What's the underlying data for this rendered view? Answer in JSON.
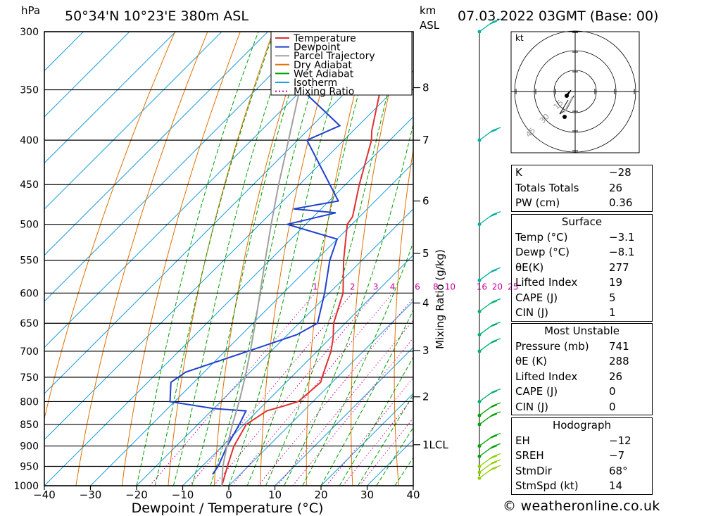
{
  "header": {
    "hpa_label": "hPa",
    "location": "50°34'N  10°23'E  380m  ASL",
    "km_label": "km",
    "asl_label": "ASL",
    "datetime": "07.03.2022  03GMT  (Base: 00)"
  },
  "chart_data": {
    "type": "skew-t",
    "xlabel": "Dewpoint / Temperature (°C)",
    "ylabel_right": "Mixing Ratio (g/kg)",
    "x_ticks": [
      -40,
      -30,
      -20,
      -10,
      0,
      10,
      20,
      30,
      40
    ],
    "x_tick_labels": [
      "−40",
      "−30",
      "−20",
      "−10",
      "0",
      "10",
      "20",
      "30",
      "40"
    ],
    "pressure_levels": [
      300,
      350,
      400,
      450,
      500,
      550,
      600,
      650,
      700,
      750,
      800,
      850,
      900,
      950,
      1000
    ],
    "xlim_at_1000hPa": [
      -40,
      40
    ],
    "ylim_hpa": [
      300,
      1000
    ],
    "km_ticks": [
      {
        "label": "8",
        "p": 348
      },
      {
        "label": "7",
        "p": 400
      },
      {
        "label": "6",
        "p": 470
      },
      {
        "label": "5",
        "p": 540
      },
      {
        "label": "4",
        "p": 616
      },
      {
        "label": "3",
        "p": 699
      },
      {
        "label": "2",
        "p": 790
      },
      {
        "label": "1LCL",
        "p": 897
      }
    ],
    "mixing_ratio_labels": [
      {
        "label": "1",
        "value": 1,
        "color": "#c8009c"
      },
      {
        "label": "2",
        "value": 2,
        "color": "#c8009c"
      },
      {
        "label": "3",
        "value": 3,
        "color": "#c8009c"
      },
      {
        "label": "4",
        "value": 4,
        "color": "#c8009c"
      },
      {
        "label": "6",
        "value": 6,
        "color": "#c8009c"
      },
      {
        "label": "8",
        "value": 8,
        "color": "#c8009c"
      },
      {
        "label": "10",
        "value": 10,
        "color": "#c8009c"
      },
      {
        "label": "16",
        "value": 16,
        "color": "#c8009c"
      },
      {
        "label": "20",
        "value": 20,
        "color": "#c8009c"
      },
      {
        "label": "25",
        "value": 25,
        "color": "#c8009c"
      }
    ],
    "legend": {
      "position": "top-right",
      "items": [
        {
          "name": "Temperature",
          "color": "#e03030",
          "style": "solid"
        },
        {
          "name": "Dewpoint",
          "color": "#2040d0",
          "style": "solid"
        },
        {
          "name": "Parcel Trajectory",
          "color": "#a0a0a0",
          "style": "solid"
        },
        {
          "name": "Dry Adiabat",
          "color": "#e07000",
          "style": "solid"
        },
        {
          "name": "Wet Adiabat",
          "color": "#00a000",
          "style": "solid"
        },
        {
          "name": "Isotherm",
          "color": "#1e9ee0",
          "style": "solid"
        },
        {
          "name": "Mixing Ratio",
          "color": "#c8009c",
          "style": "dotted"
        }
      ]
    },
    "series": [
      {
        "name": "Temperature",
        "color": "#e03030",
        "points": [
          [
            1000,
            -1.5
          ],
          [
            950,
            -4.5
          ],
          [
            900,
            -7.5
          ],
          [
            850,
            -9.5
          ],
          [
            820,
            -8.0
          ],
          [
            812,
            -6.0
          ],
          [
            800,
            -3.2
          ],
          [
            760,
            -2.5
          ],
          [
            750,
            -3.3
          ],
          [
            700,
            -7.0
          ],
          [
            675,
            -9.5
          ],
          [
            650,
            -12.5
          ],
          [
            600,
            -17.0
          ],
          [
            550,
            -24.0
          ],
          [
            500,
            -31.0
          ],
          [
            490,
            -31.5
          ],
          [
            450,
            -37.0
          ],
          [
            400,
            -44.0
          ],
          [
            390,
            -46.0
          ],
          [
            350,
            -53.0
          ],
          [
            320,
            -57.0
          ],
          [
            300,
            -59.0
          ]
        ]
      },
      {
        "name": "Dewpoint",
        "color": "#2040d0",
        "points": [
          [
            970,
            -6.0
          ],
          [
            950,
            -6.5
          ],
          [
            900,
            -9.0
          ],
          [
            850,
            -11.0
          ],
          [
            820,
            -12.5
          ],
          [
            815,
            -20.0
          ],
          [
            800,
            -31.0
          ],
          [
            760,
            -35.0
          ],
          [
            740,
            -34.0
          ],
          [
            700,
            -25.0
          ],
          [
            670,
            -18.0
          ],
          [
            650,
            -16.0
          ],
          [
            600,
            -21.0
          ],
          [
            550,
            -27.0
          ],
          [
            520,
            -30.0
          ],
          [
            500,
            -44.0
          ],
          [
            485,
            -36.0
          ],
          [
            480,
            -46.0
          ],
          [
            470,
            -38.0
          ],
          [
            400,
            -58.0
          ],
          [
            385,
            -54.0
          ],
          [
            350,
            -70.0
          ],
          [
            330,
            -62.0
          ],
          [
            315,
            -64.0
          ],
          [
            300,
            -62.0
          ]
        ]
      },
      {
        "name": "Parcel Trajectory",
        "color": "#a0a0a0",
        "points": [
          [
            1000,
            -1.5
          ],
          [
            950,
            -5.5
          ],
          [
            900,
            -9.0
          ],
          [
            850,
            -12.5
          ],
          [
            800,
            -16.0
          ],
          [
            750,
            -20.0
          ],
          [
            700,
            -24.5
          ],
          [
            650,
            -29.5
          ],
          [
            600,
            -35.0
          ],
          [
            550,
            -41.0
          ],
          [
            500,
            -47.5
          ],
          [
            450,
            -54.5
          ],
          [
            400,
            -62.0
          ],
          [
            350,
            -70.5
          ],
          [
            310,
            -78.0
          ]
        ]
      }
    ],
    "wind_barbs_hpa": [
      300,
      400,
      500,
      580,
      630,
      670,
      700,
      800,
      830,
      850,
      900,
      925,
      950,
      965,
      980
    ],
    "hodograph": {
      "unit_label": "kt",
      "ring_labels": [
        "15",
        "30",
        "45"
      ]
    }
  },
  "indices": {
    "general": [
      {
        "label": "K",
        "value": "−28"
      },
      {
        "label": "Totals Totals",
        "value": "26"
      },
      {
        "label": "PW (cm)",
        "value": "0.36"
      }
    ],
    "surface_title": "Surface",
    "surface": [
      {
        "label": "Temp (°C)",
        "value": "−3.1"
      },
      {
        "label": "Dewp (°C)",
        "value": "−8.1"
      },
      {
        "label": "θE(K)",
        "value": "277"
      },
      {
        "label": "Lifted Index",
        "value": "19"
      },
      {
        "label": "CAPE (J)",
        "value": "5"
      },
      {
        "label": "CIN (J)",
        "value": "1"
      }
    ],
    "mu_title": "Most Unstable",
    "most_unstable": [
      {
        "label": "Pressure (mb)",
        "value": "741"
      },
      {
        "label": "θE (K)",
        "value": "288"
      },
      {
        "label": "Lifted Index",
        "value": "26"
      },
      {
        "label": "CAPE (J)",
        "value": "0"
      },
      {
        "label": "CIN (J)",
        "value": "0"
      }
    ],
    "hodo_title": "Hodograph",
    "hodograph": [
      {
        "label": "EH",
        "value": "−12"
      },
      {
        "label": "SREH",
        "value": "−7"
      },
      {
        "label": "StmDir",
        "value": "68°"
      },
      {
        "label": "StmSpd (kt)",
        "value": "14"
      }
    ]
  },
  "footer": {
    "credit": "© weatheronline.co.uk"
  }
}
